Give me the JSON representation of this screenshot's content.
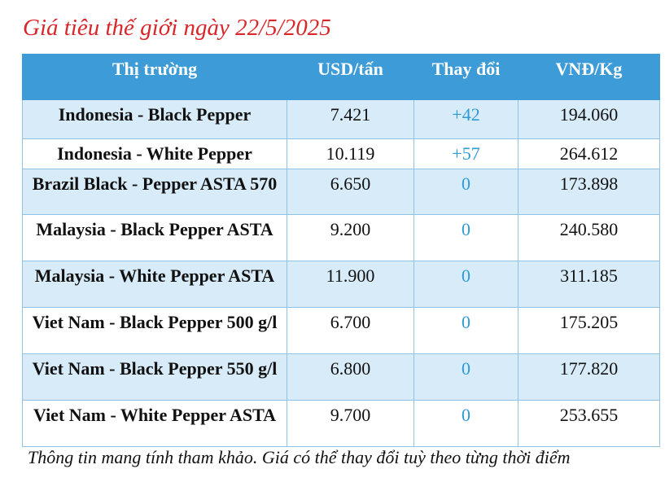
{
  "title": "Giá tiêu thế giới ngày 22/5/2025",
  "table": {
    "headers": [
      "Thị trường",
      "USD/tấn",
      "Thay đổi",
      "VNĐ/Kg"
    ],
    "rows": [
      [
        "Indonesia - Black Pepper",
        "7.421",
        "+42",
        "194.060"
      ],
      [
        "Indonesia - White Pepper",
        "10.119",
        "+57",
        "264.612"
      ],
      [
        "Brazil Black - Pepper ASTA 570",
        "6.650",
        "0",
        "173.898"
      ],
      [
        "Malaysia - Black Pepper ASTA",
        "9.200",
        "0",
        "240.580"
      ],
      [
        "Malaysia - White Pepper ASTA",
        "11.900",
        "0",
        "311.185"
      ],
      [
        "Viet Nam - Black Pepper 500 g/l",
        "6.700",
        "0",
        "175.205"
      ],
      [
        "Viet Nam - Black Pepper 550 g/l",
        "6.800",
        "0",
        "177.820"
      ],
      [
        "Viet Nam - White Pepper ASTA",
        "9.700",
        "0",
        "253.655"
      ]
    ]
  },
  "footer": "Thông tin mang tính tham khảo. Giá có thể thay đổi tuỳ theo từng thời điểm"
}
